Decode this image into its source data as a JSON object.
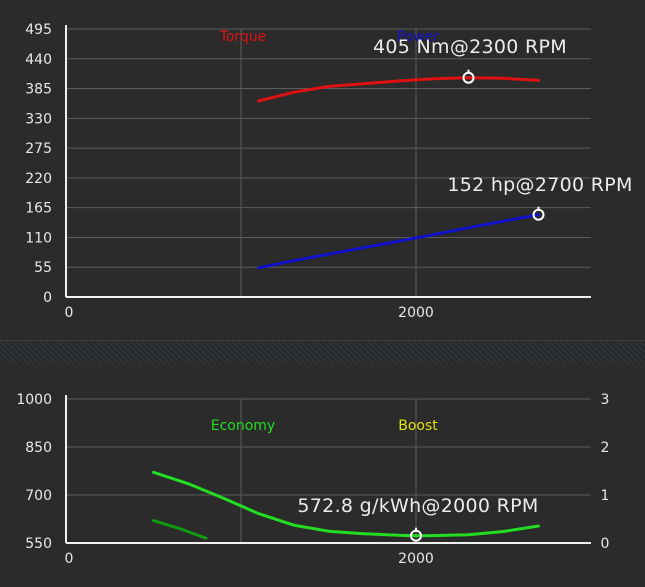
{
  "chart_data": [
    {
      "type": "line",
      "x_ticks": [
        "0",
        "2000"
      ],
      "xlim": [
        0,
        3000
      ],
      "y_ticks": [
        "495",
        "440",
        "385",
        "330",
        "275",
        "220",
        "165",
        "110",
        "55",
        "0"
      ],
      "ylim": [
        0,
        495
      ],
      "grid": true,
      "legend": {
        "placement": "top-center"
      },
      "series": [
        {
          "name": "Torque",
          "color": "#dd1111",
          "x": [
            1100,
            1300,
            1500,
            1700,
            1900,
            2100,
            2300,
            2500,
            2700
          ],
          "y": [
            362,
            378,
            389,
            394,
            399,
            403,
            405,
            404,
            400
          ]
        },
        {
          "name": "Power",
          "color": "#1111cc",
          "x": [
            1100,
            1300,
            1500,
            1700,
            1900,
            2100,
            2300,
            2500,
            2700
          ],
          "y": [
            54,
            67,
            79,
            91,
            103,
            115,
            128,
            140,
            152
          ]
        }
      ],
      "annotations": [
        {
          "text": "405 Nm@2300 RPM",
          "x": 2300,
          "y": 405
        },
        {
          "text": "152 hp@2700 RPM",
          "x": 2700,
          "y": 152
        }
      ]
    },
    {
      "type": "line",
      "x_ticks": [
        "0",
        "2000"
      ],
      "xlim": [
        0,
        3000
      ],
      "y_ticks": [
        "1000",
        "850",
        "700",
        "550"
      ],
      "ylim": [
        550,
        1000
      ],
      "y2_ticks": [
        "3",
        "2",
        "1",
        "0"
      ],
      "y2lim": [
        0,
        3
      ],
      "grid": true,
      "legend": {
        "placement": "top-center"
      },
      "series": [
        {
          "name": "Economy",
          "color": "#22dd22",
          "x": [
            500,
            700,
            900,
            1100,
            1300,
            1500,
            1700,
            1900,
            2000,
            2100,
            2300,
            2500,
            2700
          ],
          "y": [
            771,
            735,
            690,
            642,
            606,
            587,
            579,
            574,
            572.8,
            573,
            576,
            586,
            603
          ]
        },
        {
          "name": "Boost",
          "color": "#e0e010",
          "x": [],
          "y": []
        },
        {
          "name": "",
          "color": "#119911",
          "x": [
            500,
            650,
            800
          ],
          "y": [
            620,
            595,
            565
          ]
        }
      ],
      "annotations": [
        {
          "text": "572.8 g/kWh@2000 RPM",
          "x": 2000,
          "y": 572.8
        }
      ]
    }
  ]
}
